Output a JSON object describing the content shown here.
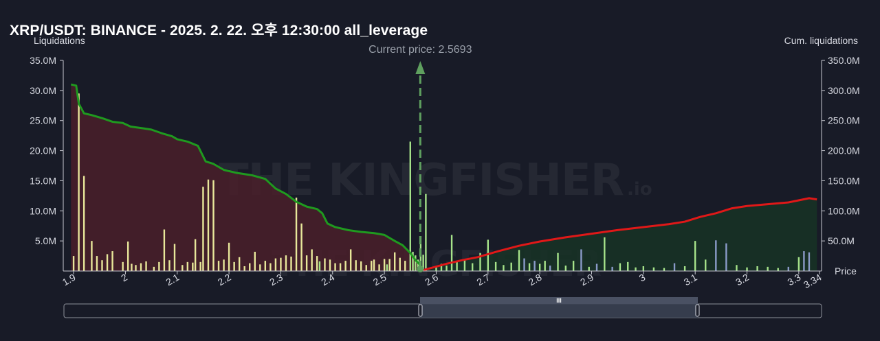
{
  "title": "XRP/USDT: BINANCE - 2025. 2. 22. 오후 12:30:00 all_leverage",
  "watermark": "THE KINGFISHER",
  "watermark_suffix": ".io",
  "colors": {
    "background": "#181b27",
    "bar_below": "#e8e79a",
    "bar_high": "#a6e38a",
    "bar_above_blue": "#8a9ac8",
    "cum_below": "#1f9a1f",
    "cum_above": "#e01818",
    "fill_below": "#4a1f2a",
    "fill_above": "#173226",
    "current_price": "#5fa05f"
  },
  "chart_data": {
    "type": "bar",
    "xlabel": "Price",
    "ylabel_left": "Liquidations",
    "ylabel_right": "Cum. liquidations",
    "xlim": [
      1.88,
      3.34
    ],
    "ylim_left": [
      0,
      35000000
    ],
    "ylim_right": [
      0,
      350000000
    ],
    "x_ticks": [
      "1.9",
      "2",
      "2.1",
      "2.2",
      "2.3",
      "2.4",
      "2.5",
      "2.6",
      "2.7",
      "2.8",
      "2.9",
      "3",
      "3.1",
      "3.2",
      "3.3",
      "3.34"
    ],
    "x_tick_values": [
      1.9,
      2.0,
      2.1,
      2.2,
      2.3,
      2.4,
      2.5,
      2.6,
      2.7,
      2.8,
      2.9,
      3.0,
      3.1,
      3.2,
      3.3,
      3.34
    ],
    "y_left_ticks": [
      "5.0M",
      "10.0M",
      "15.0M",
      "20.0M",
      "25.0M",
      "30.0M",
      "35.0M"
    ],
    "y_left_tick_values": [
      5000000,
      10000000,
      15000000,
      20000000,
      25000000,
      30000000,
      35000000
    ],
    "y_right_ticks": [
      "50.0M",
      "100.0M",
      "150.0M",
      "200.0M",
      "250.0M",
      "300.0M",
      "350.0M"
    ],
    "y_right_tick_values": [
      50000000,
      100000000,
      150000000,
      200000000,
      250000000,
      300000000,
      350000000
    ],
    "current_price": 2.5693,
    "current_price_label": "Current price: 2.5693",
    "bars_below": {
      "price": [
        1.9,
        1.91,
        1.92,
        1.935,
        1.945,
        1.955,
        1.965,
        1.975,
        1.995,
        2.005,
        2.012,
        2.02,
        2.03,
        2.04,
        2.055,
        2.065,
        2.075,
        2.085,
        2.095,
        2.11,
        2.12,
        2.13,
        2.135,
        2.145,
        2.15,
        2.16,
        2.17,
        2.18,
        2.19,
        2.2,
        2.21,
        2.22,
        2.23,
        2.24,
        2.25,
        2.26,
        2.27,
        2.28,
        2.29,
        2.3,
        2.31,
        2.32,
        2.33,
        2.34,
        2.35,
        2.36,
        2.37,
        2.375,
        2.385,
        2.395,
        2.405,
        2.415,
        2.425,
        2.435,
        2.445,
        2.455,
        2.465,
        2.475,
        2.48,
        2.49,
        2.5,
        2.505,
        2.51,
        2.52,
        2.53,
        2.54,
        2.55
      ],
      "value": [
        2500000,
        29500000,
        15800000,
        5000000,
        2500000,
        1800000,
        2800000,
        3300000,
        1500000,
        4900000,
        1200000,
        1000000,
        1300000,
        1600000,
        700000,
        1500000,
        6900000,
        1800000,
        4500000,
        1000000,
        1500000,
        1400000,
        5300000,
        1500000,
        14000000,
        15200000,
        15100000,
        1700000,
        1900000,
        4700000,
        1500000,
        2300000,
        800000,
        1300000,
        3200000,
        1100000,
        1700000,
        1300000,
        2100000,
        2200000,
        2600000,
        2400000,
        12200000,
        7900000,
        2600000,
        3600000,
        2500000,
        1600000,
        2100000,
        1900000,
        1300000,
        1300000,
        1700000,
        3600000,
        1800000,
        1600000,
        1000000,
        1700000,
        1900000,
        1100000,
        2000000,
        1100000,
        2000000,
        3100000,
        2200000,
        1700000,
        21500000
      ],
      "highlight_prices": [
        2.375,
        2.505,
        2.55
      ]
    },
    "bars_below_extra": {
      "price": [
        2.555,
        2.56,
        2.565,
        2.57,
        2.575,
        2.58
      ],
      "value": [
        3200000,
        2600000,
        1900000,
        5800000,
        2700000,
        12800000
      ]
    },
    "bars_above": {
      "price": [
        2.6,
        2.61,
        2.62,
        2.63,
        2.64,
        2.655,
        2.67,
        2.685,
        2.7,
        2.715,
        2.73,
        2.745,
        2.76,
        2.77,
        2.78,
        2.79,
        2.8,
        2.81,
        2.82,
        2.835,
        2.85,
        2.865,
        2.88,
        2.895,
        2.91,
        2.925,
        2.94,
        2.955,
        2.97,
        2.985,
        3.0,
        3.02,
        3.04,
        3.06,
        3.08,
        3.1,
        3.12,
        3.14,
        3.16,
        3.18,
        3.2,
        3.22,
        3.24,
        3.26,
        3.28,
        3.3,
        3.31,
        3.32
      ],
      "value": [
        700000,
        1200000,
        900000,
        6000000,
        1500000,
        2000000,
        1300000,
        3000000,
        5200000,
        1500000,
        1000000,
        1400000,
        3500000,
        2100000,
        1300000,
        1700000,
        1200000,
        1700000,
        900000,
        3000000,
        900000,
        1700000,
        3600000,
        700000,
        1200000,
        5600000,
        700000,
        1300000,
        1500000,
        600000,
        800000,
        600000,
        500000,
        1300000,
        800000,
        5000000,
        1900000,
        5100000,
        4600000,
        1000000,
        600000,
        800000,
        700000,
        500000,
        700000,
        2300000,
        3300000,
        3100000
      ],
      "blue_prices": [
        2.77,
        2.79,
        2.82,
        2.88,
        2.91,
        2.94,
        3.06,
        3.14,
        3.16,
        3.28,
        3.31,
        3.32
      ]
    },
    "cum_below": {
      "price": [
        1.895,
        1.905,
        1.91,
        1.92,
        1.935,
        1.955,
        1.975,
        1.995,
        2.01,
        2.035,
        2.05,
        2.07,
        2.09,
        2.1,
        2.12,
        2.14,
        2.155,
        2.17,
        2.19,
        2.215,
        2.245,
        2.27,
        2.29,
        2.31,
        2.33,
        2.35,
        2.37,
        2.38,
        2.39,
        2.405,
        2.43,
        2.455,
        2.48,
        2.5,
        2.52,
        2.535,
        2.55,
        2.56,
        2.5693
      ],
      "value": [
        310000000,
        308000000,
        278000000,
        262000000,
        259000000,
        254000000,
        248000000,
        246000000,
        240000000,
        237000000,
        235000000,
        229000000,
        224000000,
        219000000,
        215000000,
        208000000,
        182000000,
        178000000,
        168000000,
        163000000,
        159000000,
        153000000,
        137000000,
        128000000,
        115000000,
        107000000,
        103000000,
        96000000,
        79000000,
        73000000,
        68000000,
        65000000,
        63000000,
        60000000,
        50000000,
        43000000,
        30000000,
        18000000,
        10000000
      ]
    },
    "cum_above": {
      "price": [
        2.5693,
        2.59,
        2.62,
        2.65,
        2.68,
        2.72,
        2.76,
        2.8,
        2.85,
        2.9,
        2.95,
        3.0,
        3.05,
        3.08,
        3.11,
        3.14,
        3.17,
        3.2,
        3.24,
        3.28,
        3.32,
        3.335
      ],
      "value": [
        0,
        5000000,
        12000000,
        18000000,
        23000000,
        33000000,
        42000000,
        49000000,
        56000000,
        62000000,
        68000000,
        73000000,
        78000000,
        82000000,
        90000000,
        96000000,
        104000000,
        108000000,
        111000000,
        114000000,
        121000000,
        119000000
      ]
    }
  },
  "range_selector": {
    "grip_label": "III"
  }
}
